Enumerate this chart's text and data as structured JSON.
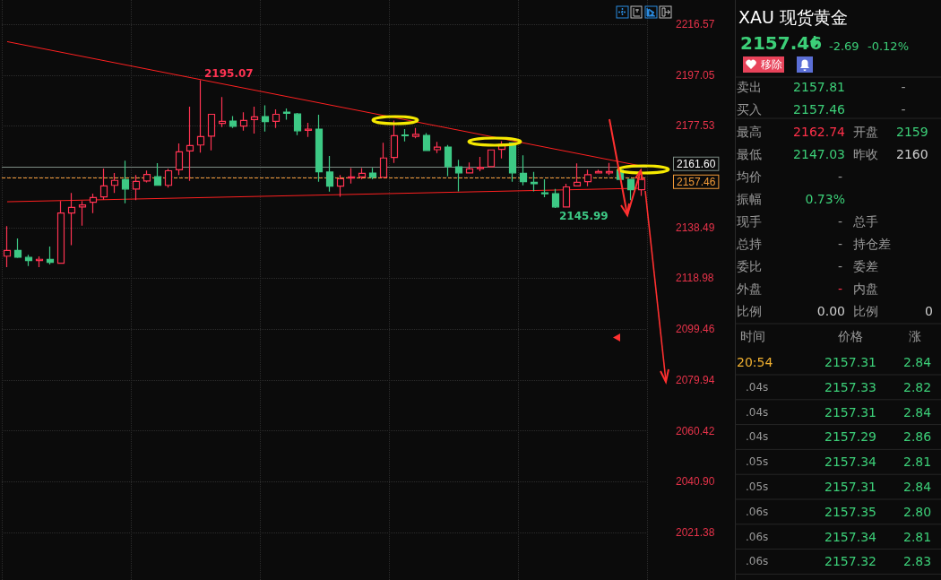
{
  "chart_data": [
    {
      "type": "candlestick",
      "categories": [
        null,
        null,
        null,
        null,
        null,
        null,
        null,
        null,
        null,
        null,
        null,
        null,
        null,
        null,
        null,
        null,
        null,
        null,
        null,
        null,
        null,
        null,
        null,
        null,
        null,
        null,
        null,
        null,
        null,
        null,
        null,
        null,
        null,
        null,
        null,
        null,
        null,
        null,
        null,
        null,
        null,
        null,
        null,
        null,
        null,
        null,
        null,
        null,
        null,
        null,
        null,
        null,
        null,
        null,
        null,
        null,
        null,
        null,
        null,
        null
      ],
      "ohlc": [
        [
          2127.5,
          2139.0,
          2123.3,
          2129.7
        ],
        [
          2129.7,
          2134.3,
          2126.8,
          2127.1
        ],
        [
          2127.0,
          2128.0,
          2123.7,
          2125.8
        ],
        [
          2125.8,
          2127.4,
          2123.3,
          2126.3
        ],
        [
          2126.3,
          2131.2,
          2124.3,
          2125.1
        ],
        [
          2124.8,
          2148.7,
          2124.8,
          2144.1
        ],
        [
          2144.1,
          2151.8,
          2131.7,
          2146.2
        ],
        [
          2146.4,
          2148.7,
          2139.2,
          2147.2
        ],
        [
          2148.2,
          2151.5,
          2144.0,
          2150.0
        ],
        [
          2150.3,
          2161.2,
          2149.2,
          2154.5
        ],
        [
          2154.7,
          2159.4,
          2151.8,
          2156.6
        ],
        [
          2156.9,
          2164.2,
          2147.8,
          2153.3
        ],
        [
          2153.3,
          2158.7,
          2149.0,
          2156.2
        ],
        [
          2156.4,
          2160.4,
          2155.8,
          2158.9
        ],
        [
          2158.0,
          2163.2,
          2154.7,
          2154.7
        ],
        [
          2154.7,
          2161.1,
          2153.8,
          2160.3
        ],
        [
          2160.7,
          2170.8,
          2158.7,
          2167.6
        ],
        [
          2167.9,
          2184.9,
          2156.4,
          2170.0
        ],
        [
          2170.2,
          2195.07,
          2167.3,
          2173.4
        ],
        [
          2173.6,
          2182.2,
          2168.1,
          2182.0
        ],
        [
          2178.5,
          2188.6,
          2177.1,
          2179.3
        ],
        [
          2179.4,
          2181.3,
          2176.7,
          2177.4
        ],
        [
          2177.5,
          2182.8,
          2175.7,
          2179.6
        ],
        [
          2180.0,
          2184.9,
          2174.6,
          2181.0
        ],
        [
          2181.1,
          2185.4,
          2175.4,
          2179.2
        ],
        [
          2179.3,
          2183.9,
          2176.7,
          2182.0
        ],
        [
          2182.8,
          2184.2,
          2179.9,
          2182.4
        ],
        [
          2182.1,
          2182.5,
          2174.0,
          2175.7
        ],
        [
          2175.8,
          2178.7,
          2173.3,
          2176.3
        ],
        [
          2176.3,
          2181.8,
          2156.1,
          2159.9
        ],
        [
          2159.8,
          2166.0,
          2152.3,
          2154.4
        ],
        [
          2154.4,
          2158.7,
          2150.3,
          2157.2
        ],
        [
          2157.5,
          2161.3,
          2155.4,
          2157.9
        ],
        [
          2157.9,
          2161.3,
          2157.0,
          2159.3
        ],
        [
          2159.4,
          2161.4,
          2157.0,
          2157.8
        ],
        [
          2157.8,
          2171.1,
          2157.8,
          2165.2
        ],
        [
          2165.4,
          2179.6,
          2163.3,
          2173.8
        ],
        [
          2174.0,
          2176.3,
          2171.6,
          2173.8
        ],
        [
          2173.5,
          2176.7,
          2172.8,
          2174.3
        ],
        [
          2173.9,
          2174.8,
          2168.1,
          2168.1
        ],
        [
          2168.4,
          2171.4,
          2167.1,
          2169.4
        ],
        [
          2169.4,
          2170.2,
          2158.2,
          2161.9
        ],
        [
          2161.8,
          2164.5,
          2152.4,
          2159.5
        ],
        [
          2159.5,
          2163.5,
          2159.5,
          2161.0
        ],
        [
          2161.1,
          2165.6,
          2160.1,
          2161.6
        ],
        [
          2161.9,
          2168.3,
          2161.9,
          2168.3
        ],
        [
          2168.5,
          2171.7,
          2165.0,
          2170.4
        ],
        [
          2171.0,
          2171.0,
          2156.1,
          2159.5
        ],
        [
          2159.3,
          2166.2,
          2154.7,
          2156.1
        ],
        [
          2155.9,
          2159.9,
          2152.4,
          2155.3
        ],
        [
          2151.8,
          2157.0,
          2150.1,
          2151.5
        ],
        [
          2151.5,
          2153.3,
          2145.99,
          2146.4
        ],
        [
          2146.4,
          2155.3,
          2146.4,
          2154.1
        ],
        [
          2154.5,
          2163.1,
          2154.5,
          2155.9
        ],
        [
          2156.1,
          2160.7,
          2154.4,
          2158.8
        ],
        [
          2159.5,
          2160.7,
          2159.5,
          2160.0
        ],
        [
          2159.5,
          2163.3,
          2158.7,
          2160.0
        ],
        [
          2160.5,
          2161.0,
          2157.0,
          2157.0
        ],
        [
          2157.0,
          2157.0,
          2149.0,
          2153.0
        ],
        [
          2153.0,
          2158.4,
          2150.7,
          2157.0
        ]
      ],
      "colors": [
        "#ff3352",
        "#3dc985",
        "#3dc985",
        "#ff3352",
        "#3dc985",
        "#ff3352",
        "#ff3352",
        "#ff3352",
        "#ff3352",
        "#ff3352",
        "#ff3352",
        "#3dc985",
        "#ff3352",
        "#ff3352",
        "#3dc985",
        "#ff3352",
        "#ff3352",
        "#ff3352",
        "#ff3352",
        "#ff3352",
        "#ff3352",
        "#3dc985",
        "#ff3352",
        "#ff3352",
        "#3dc985",
        "#ff3352",
        "#3dc985",
        "#3dc985",
        "#ff3352",
        "#3dc985",
        "#3dc985",
        "#ff3352",
        "#ff3352",
        "#ff3352",
        "#3dc985",
        "#ff3352",
        "#ff3352",
        "#3dc985",
        "#ff3352",
        "#3dc985",
        "#ff3352",
        "#3dc985",
        "#3dc985",
        "#ff3352",
        "#ff3352",
        "#ff3352",
        "#ff3352",
        "#3dc985",
        "#3dc985",
        "#3dc985",
        "#3dc985",
        "#3dc985",
        "#ff3352",
        "#ff3352",
        "#ff3352",
        "#ff3352",
        "#ff3352",
        "#3dc985",
        "#3dc985",
        "#ff3352"
      ],
      "series": [
        {
          "type": "line",
          "color": "#ff2020",
          "values": [
            2209.9,
            null,
            null,
            null,
            null,
            null,
            null,
            null,
            null,
            null,
            null,
            null,
            null,
            null,
            null,
            null,
            null,
            null,
            null,
            null,
            null,
            null,
            null,
            null,
            null,
            null,
            null,
            null,
            null,
            null,
            null,
            null,
            null,
            null,
            null,
            null,
            null,
            null,
            null,
            null,
            null,
            null,
            null,
            null,
            null,
            null,
            null,
            null,
            null,
            null,
            null,
            null,
            null,
            null,
            null,
            null,
            null,
            null,
            null,
            2162.1
          ]
        },
        {
          "type": "line",
          "color": "#ff2020",
          "values": [
            2148.4,
            null,
            null,
            null,
            null,
            null,
            null,
            null,
            null,
            null,
            null,
            null,
            null,
            null,
            null,
            null,
            null,
            null,
            null,
            null,
            null,
            null,
            null,
            null,
            null,
            null,
            null,
            null,
            null,
            null,
            null,
            null,
            null,
            null,
            null,
            null,
            null,
            null,
            null,
            null,
            null,
            null,
            null,
            null,
            null,
            null,
            null,
            null,
            null,
            null,
            null,
            null,
            null,
            null,
            null,
            null,
            null,
            null,
            null,
            2153.6
          ]
        }
      ],
      "ylim": [
        2003.1,
        2225.9
      ],
      "yticks": [
        2021.38,
        {
          "value": 2040.9,
          "label": "2040.90"
        },
        2060.42,
        2079.94,
        2099.46,
        2118.98,
        2138.49,
        {
          "value": 2158.01,
          "label": null
        },
        2177.53,
        2197.05,
        2216.57
      ],
      "grid": true,
      "tick_labels": "y",
      "ref_lines": [
        {
          "axis": "y",
          "value": 2161.6,
          "label": "2161.60",
          "color": "#7d8c84",
          "line_style": "solid"
        },
        {
          "axis": "y",
          "value": 2157.46,
          "label": "2157.46",
          "color": "#f29a38",
          "line_style": "dashed"
        }
      ],
      "annotations": [
        "2195.07",
        "2145.99"
      ]
    },
    {
      "type": "other",
      "title": "XAU 现货黄金",
      "annotations": [
        "2157.46",
        "-2.69",
        "-0.12%",
        "移除",
        "卖出",
        "2157.81",
        "-",
        "买入",
        "2157.46",
        "-",
        "最高",
        "2162.74",
        "开盘",
        "2159",
        "最低",
        "2147.03",
        "昨收",
        "2160",
        "均价",
        "-",
        "振幅",
        "0.73%",
        "现手",
        "-",
        "总手",
        "总持",
        "-",
        "持仓差",
        "委比",
        "-",
        "委差",
        "外盘",
        "-",
        "内盘",
        "比例",
        "0.00",
        "比例",
        "0",
        "时间",
        "价格",
        "涨",
        "20:54",
        "2157.31",
        "2.84",
        ".04s",
        "2157.33",
        "2.82",
        ".04s",
        "2157.31",
        "2.84",
        ".04s",
        "2157.29",
        "2.86",
        ".05s",
        "2157.34",
        "2.81",
        ".05s",
        "2157.31",
        "2.84",
        ".06s",
        "2157.35",
        "2.80",
        ".06s",
        "2157.34",
        "2.81",
        ".06s",
        "2157.32",
        "2.83"
      ]
    }
  ]
}
